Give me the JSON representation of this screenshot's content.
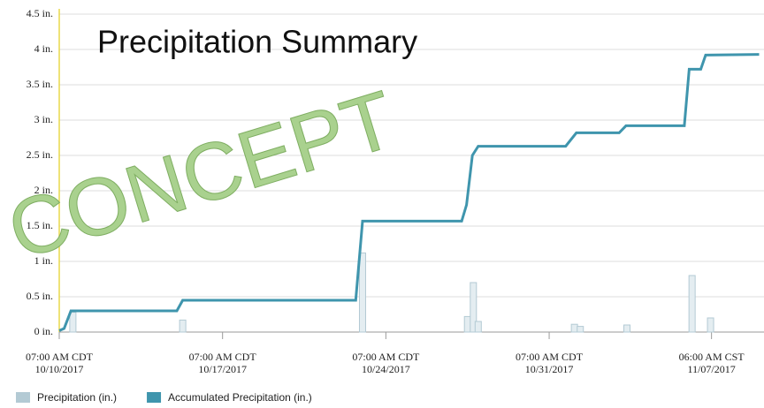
{
  "chart_data": {
    "type": "line",
    "title": "Precipitation Summary",
    "watermark": "CONCEPT",
    "xlim": [
      "2017-10-10T07:00",
      "2017-11-09T12:00"
    ],
    "xticks": [
      {
        "value": "2017-10-10T07:00",
        "label": "07:00 AM CDT\n10/10/2017"
      },
      {
        "value": "2017-10-17T07:00",
        "label": "07:00 AM CDT\n10/17/2017"
      },
      {
        "value": "2017-10-24T07:00",
        "label": "07:00 AM CDT\n10/24/2017"
      },
      {
        "value": "2017-10-31T07:00",
        "label": "07:00 AM CDT\n10/31/2017"
      },
      {
        "value": "2017-11-07T06:00",
        "label": "06:00 AM CST\n11/07/2017"
      }
    ],
    "ylim": [
      0,
      4.5
    ],
    "yticks": [
      {
        "value": 0,
        "label": "0 in."
      },
      {
        "value": 0.5,
        "label": "0.5 in."
      },
      {
        "value": 1,
        "label": "1 in."
      },
      {
        "value": 1.5,
        "label": "1.5 in."
      },
      {
        "value": 2,
        "label": "2 in."
      },
      {
        "value": 2.5,
        "label": "2.5 in."
      },
      {
        "value": 3,
        "label": "3 in."
      },
      {
        "value": 3.5,
        "label": "3.5 in."
      },
      {
        "value": 4,
        "label": "4 in."
      },
      {
        "value": 4.5,
        "label": "4.5 in."
      }
    ],
    "grid": true,
    "legend": "bottom-left",
    "series": [
      {
        "name": "Precipitation (in.)",
        "type": "bar",
        "color": "#b3cad4",
        "x": [
          "2017-10-10T21:00",
          "2017-10-15T14:00",
          "2017-10-23T07:00",
          "2017-10-27T19:00",
          "2017-10-28T01:00",
          "2017-10-28T06:00",
          "2017-11-01T09:00",
          "2017-11-01T15:00",
          "2017-11-03T15:00",
          "2017-11-06T10:00",
          "2017-11-07T05:00"
        ],
        "values": [
          0.28,
          0.17,
          1.12,
          0.22,
          0.7,
          0.15,
          0.11,
          0.08,
          0.1,
          0.8,
          0.2
        ]
      },
      {
        "name": "Accumulated Precipitation (in.)",
        "type": "line",
        "color": "#3f95ad",
        "x": [
          "2017-10-10T07:00",
          "2017-10-10T12:00",
          "2017-10-10T19:00",
          "2017-10-15T08:00",
          "2017-10-15T14:00",
          "2017-10-23T00:00",
          "2017-10-23T07:00",
          "2017-10-27T13:00",
          "2017-10-27T18:00",
          "2017-10-28T00:00",
          "2017-10-28T06:00",
          "2017-11-01T00:00",
          "2017-11-01T11:00",
          "2017-11-03T07:00",
          "2017-11-03T14:00",
          "2017-11-06T02:00",
          "2017-11-06T07:00",
          "2017-11-06T19:00",
          "2017-11-07T00:00",
          "2017-11-09T07:00"
        ],
        "values": [
          0.02,
          0.05,
          0.3,
          0.3,
          0.45,
          0.45,
          1.57,
          1.57,
          1.8,
          2.5,
          2.63,
          2.63,
          2.82,
          2.82,
          2.92,
          2.92,
          3.72,
          3.72,
          3.92,
          3.93
        ]
      }
    ]
  }
}
